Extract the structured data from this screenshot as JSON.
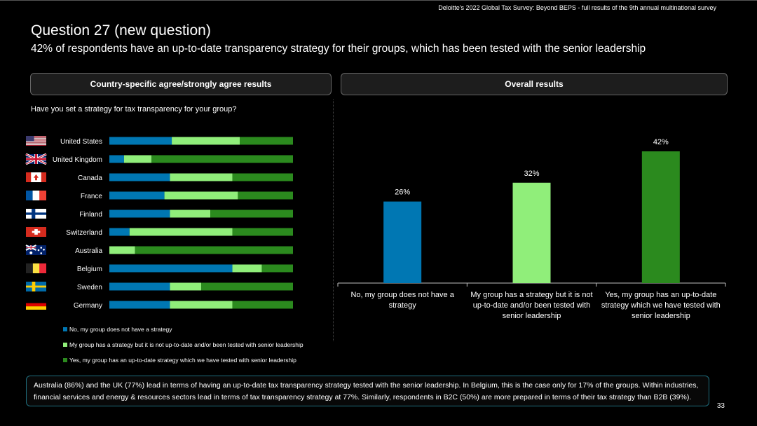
{
  "header": {
    "source": "Deloitte's 2022 Global Tax Survey: Beyond BEPS  - full results of the 9th annual multinational survey"
  },
  "title": "Question 27 (new question)",
  "subtitle": "42% of respondents have an up-to-date transparency strategy for their groups, which has been tested with the senior leadership",
  "left_panel": {
    "heading": "Country-specific agree/strongly agree results",
    "question": "Have you set a strategy for tax transparency for your group?"
  },
  "right_panel": {
    "heading": "Overall results"
  },
  "colors": {
    "no_strategy": "#0077B3",
    "not_up_to_date": "#90EE7A",
    "up_to_date": "#2B8A1E"
  },
  "legend": [
    {
      "label": "No, my group does not have a strategy",
      "color": "#0077B3"
    },
    {
      "label": "My group has a strategy but it is not up-to-date and/or been tested with senior leadership",
      "color": "#90EE7A"
    },
    {
      "label": "Yes, my group has an up-to-date strategy which we have tested with senior leadership",
      "color": "#2B8A1E"
    }
  ],
  "chart_data": [
    {
      "type": "bar",
      "orientation": "horizontal-stacked-100",
      "categories": [
        "United States",
        "United Kingdom",
        "Canada",
        "France",
        "Finland",
        "Switzerland",
        "Australia",
        "Belgium",
        "Sweden",
        "Germany"
      ],
      "flags": [
        "us-flag-icon",
        "uk-flag-icon",
        "canada-flag-icon",
        "france-flag-icon",
        "finland-flag-icon",
        "switzerland-flag-icon",
        "australia-flag-icon",
        "belgium-flag-icon",
        "sweden-flag-icon",
        "germany-flag-icon"
      ],
      "series": [
        {
          "name": "No, my group does not have a strategy",
          "values": [
            34,
            8,
            33,
            30,
            33,
            11,
            0,
            67,
            33,
            33
          ]
        },
        {
          "name": "My group has a strategy but it is not up-to-date and/or been tested with senior leadership",
          "values": [
            37,
            15,
            34,
            40,
            22,
            56,
            14,
            16,
            17,
            34
          ]
        },
        {
          "name": "Yes, my group has an up-to-date strategy which we have tested with senior leadership",
          "values": [
            29,
            77,
            33,
            30,
            45,
            33,
            86,
            17,
            50,
            33
          ]
        }
      ],
      "xlim": [
        0,
        100
      ]
    },
    {
      "type": "bar",
      "categories": [
        [
          "No, my group does not have a",
          "strategy"
        ],
        [
          "My group has a strategy but it is not",
          "up-to-date and/or been tested with",
          "senior leadership"
        ],
        [
          "Yes, my group has an up-to-date",
          "strategy which we have tested with",
          "senior leadership"
        ]
      ],
      "values": [
        26,
        32,
        42
      ],
      "labels": [
        "26%",
        "32%",
        "42%"
      ],
      "colors": [
        "#0077B3",
        "#90EE7A",
        "#2B8A1E"
      ]
    }
  ],
  "footer": {
    "text": "Australia (86%) and the UK (77%) lead in terms of having an up-to-date tax transparency strategy tested with the senior leadership. In Belgium, this is the case only for 17% of the groups. Within industries, financial services and energy & resources sectors lead in terms of tax transparency strategy at 77%. Similarly, respondents in B2C (50%) are more prepared in terms of their tax  strategy than B2B (39%).",
    "page_number": "33"
  }
}
